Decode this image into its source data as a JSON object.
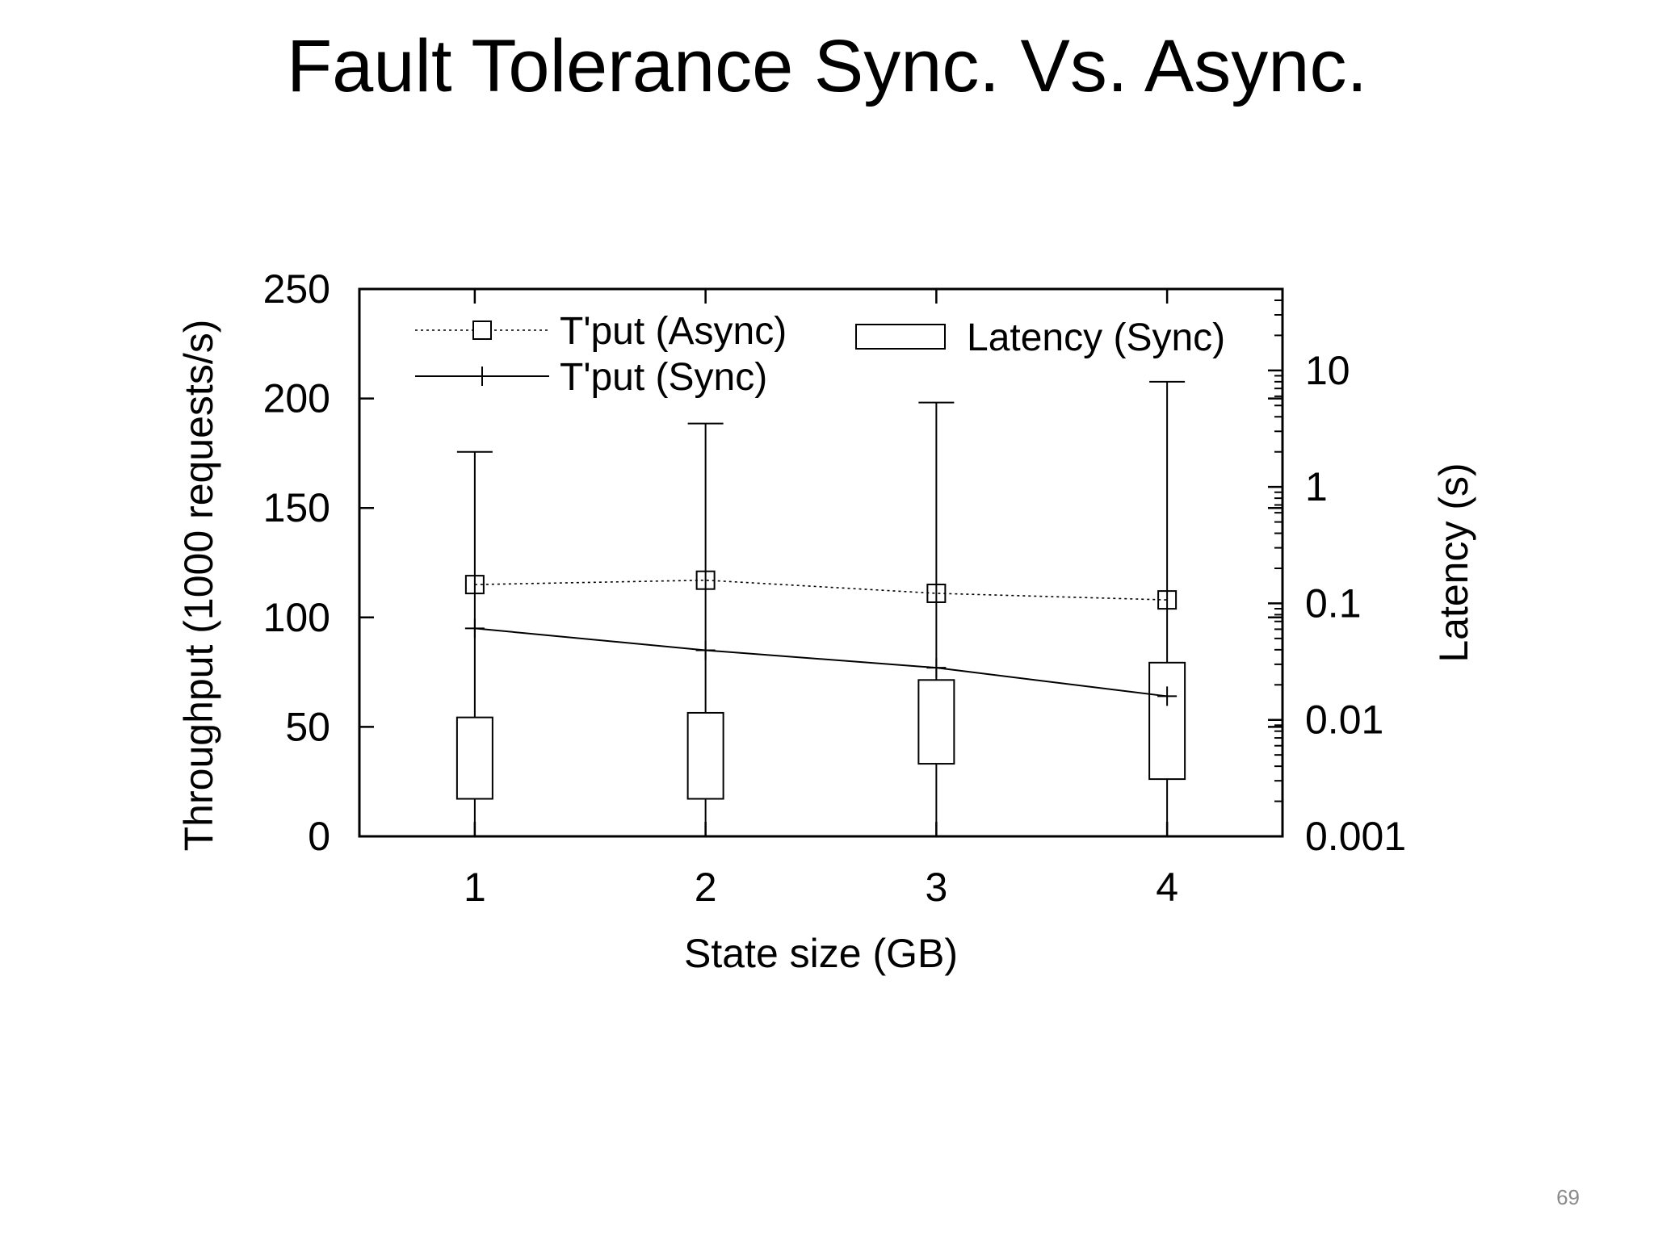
{
  "slide": {
    "title": "Fault Tolerance Sync. Vs. Async.",
    "page_number": "69"
  },
  "chart_data": {
    "type": "line",
    "title": "",
    "xlabel": "State size (GB)",
    "ylabel": "Throughput (1000 requests/s)",
    "y2label": "Latency (s)",
    "categories": [
      "1",
      "2",
      "3",
      "4"
    ],
    "x": [
      1,
      2,
      3,
      4
    ],
    "xlim": [
      0.5,
      4.5
    ],
    "ylim": [
      0,
      250
    ],
    "yticks": [
      0,
      50,
      100,
      150,
      200,
      250
    ],
    "y2lim": [
      0.001,
      50
    ],
    "y2scale": "log",
    "y2ticks": [
      "0.001",
      "0.01",
      "0.1",
      "1",
      "10"
    ],
    "grid": false,
    "legend_position": "top",
    "series": [
      {
        "name": "T'put (Async)",
        "kind": "line",
        "axis": "left",
        "style": "dotted",
        "marker": "square",
        "values": [
          115,
          117,
          111,
          108
        ]
      },
      {
        "name": "T'put (Sync)",
        "kind": "line",
        "axis": "left",
        "style": "solid",
        "marker": "plus",
        "values": [
          95,
          85,
          77,
          64
        ]
      },
      {
        "name": "Latency (Sync)",
        "kind": "boxplot",
        "axis": "right",
        "boxes": [
          {
            "x": 1,
            "whisker_low": 0.001,
            "q1": 0.0021,
            "q3": 0.0105,
            "whisker_high": 2.0
          },
          {
            "x": 2,
            "whisker_low": 0.001,
            "q1": 0.0021,
            "q3": 0.0115,
            "whisker_high": 3.5
          },
          {
            "x": 3,
            "whisker_low": 0.001,
            "q1": 0.0042,
            "q3": 0.022,
            "whisker_high": 5.3
          },
          {
            "x": 4,
            "whisker_low": 0.001,
            "q1": 0.0031,
            "q3": 0.031,
            "whisker_high": 8.0
          }
        ]
      }
    ]
  }
}
